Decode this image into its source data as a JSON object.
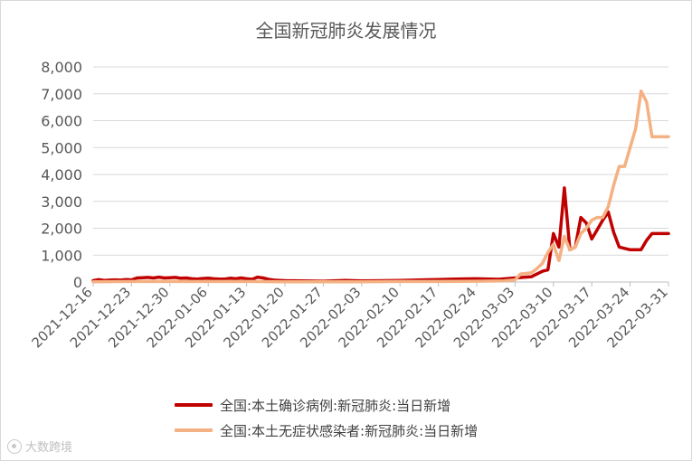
{
  "chart_data": {
    "type": "line",
    "title": "全国新冠肺炎发展情况",
    "ylim": [
      0,
      8000
    ],
    "y_ticks": [
      "0",
      "1,000",
      "2,000",
      "3,000",
      "4,000",
      "5,000",
      "6,000",
      "7,000",
      "8,000"
    ],
    "x_ticks": [
      "2021-12-16",
      "2021-12-23",
      "2021-12-30",
      "2022-01-06",
      "2022-01-13",
      "2022-01-20",
      "2022-01-27",
      "2022-02-03",
      "2022-02-10",
      "2022-02-17",
      "2022-02-24",
      "2022-03-03",
      "2022-03-10",
      "2022-03-17",
      "2022-03-24",
      "2022-03-31"
    ],
    "x_start": "2021-12-16",
    "x_end": "2022-03-31",
    "grid": true,
    "legend_position": "bottom",
    "series": [
      {
        "name": "全国:本土确诊病例:新冠肺炎:当日新增",
        "color": "#c00000",
        "dates": [
          "2021-12-16",
          "2021-12-17",
          "2021-12-18",
          "2021-12-19",
          "2021-12-20",
          "2021-12-21",
          "2021-12-22",
          "2021-12-23",
          "2021-12-24",
          "2021-12-25",
          "2021-12-26",
          "2021-12-27",
          "2021-12-28",
          "2021-12-29",
          "2021-12-30",
          "2021-12-31",
          "2022-01-01",
          "2022-01-02",
          "2022-01-03",
          "2022-01-04",
          "2022-01-05",
          "2022-01-06",
          "2022-01-07",
          "2022-01-08",
          "2022-01-09",
          "2022-01-10",
          "2022-01-11",
          "2022-01-12",
          "2022-01-13",
          "2022-01-14",
          "2022-01-15",
          "2022-01-16",
          "2022-01-17",
          "2022-01-18",
          "2022-01-19",
          "2022-01-20",
          "2022-01-23",
          "2022-01-27",
          "2022-01-31",
          "2022-02-03",
          "2022-02-07",
          "2022-02-10",
          "2022-02-14",
          "2022-02-17",
          "2022-02-20",
          "2022-02-24",
          "2022-02-28",
          "2022-03-03",
          "2022-03-06",
          "2022-03-08",
          "2022-03-09",
          "2022-03-10",
          "2022-03-11",
          "2022-03-12",
          "2022-03-13",
          "2022-03-14",
          "2022-03-15",
          "2022-03-16",
          "2022-03-17",
          "2022-03-18",
          "2022-03-19",
          "2022-03-20",
          "2022-03-21",
          "2022-03-22",
          "2022-03-23",
          "2022-03-24",
          "2022-03-25",
          "2022-03-26",
          "2022-03-27",
          "2022-03-28",
          "2022-03-29",
          "2022-03-30",
          "2022-03-31"
        ],
        "values": [
          50,
          90,
          60,
          70,
          80,
          70,
          90,
          80,
          150,
          160,
          170,
          150,
          180,
          150,
          160,
          170,
          140,
          150,
          120,
          110,
          130,
          140,
          120,
          110,
          110,
          140,
          120,
          150,
          120,
          100,
          180,
          150,
          100,
          70,
          60,
          50,
          40,
          30,
          60,
          40,
          50,
          60,
          80,
          90,
          110,
          120,
          100,
          150,
          200,
          400,
          450,
          1800,
          1300,
          3500,
          1200,
          1300,
          2400,
          2200,
          1600,
          1950,
          2300,
          2600,
          1850,
          1300,
          1250,
          1200,
          1200,
          1200,
          1550,
          1800,
          1800,
          1800,
          1800
        ]
      },
      {
        "name": "全国:本土无症状感染者:新冠肺炎:当日新增",
        "color": "#f4b183",
        "dates": [
          "2021-12-16",
          "2021-12-23",
          "2021-12-30",
          "2022-01-06",
          "2022-01-13",
          "2022-01-20",
          "2022-01-27",
          "2022-02-03",
          "2022-02-10",
          "2022-02-17",
          "2022-02-24",
          "2022-03-01",
          "2022-03-03",
          "2022-03-04",
          "2022-03-05",
          "2022-03-06",
          "2022-03-07",
          "2022-03-08",
          "2022-03-09",
          "2022-03-10",
          "2022-03-11",
          "2022-03-12",
          "2022-03-13",
          "2022-03-14",
          "2022-03-15",
          "2022-03-16",
          "2022-03-17",
          "2022-03-18",
          "2022-03-19",
          "2022-03-20",
          "2022-03-21",
          "2022-03-22",
          "2022-03-23",
          "2022-03-24",
          "2022-03-25",
          "2022-03-26",
          "2022-03-27",
          "2022-03-28",
          "2022-03-29",
          "2022-03-30",
          "2022-03-31"
        ],
        "values": [
          10,
          20,
          20,
          20,
          20,
          10,
          10,
          10,
          20,
          20,
          30,
          40,
          80,
          300,
          320,
          350,
          500,
          700,
          1100,
          1400,
          800,
          1700,
          1200,
          1300,
          1800,
          2000,
          2300,
          2400,
          2400,
          2800,
          3600,
          4300,
          4300,
          5000,
          5700,
          7100,
          6700,
          5400,
          5400,
          5400,
          5400
        ]
      }
    ]
  },
  "watermark": "大数跨境"
}
